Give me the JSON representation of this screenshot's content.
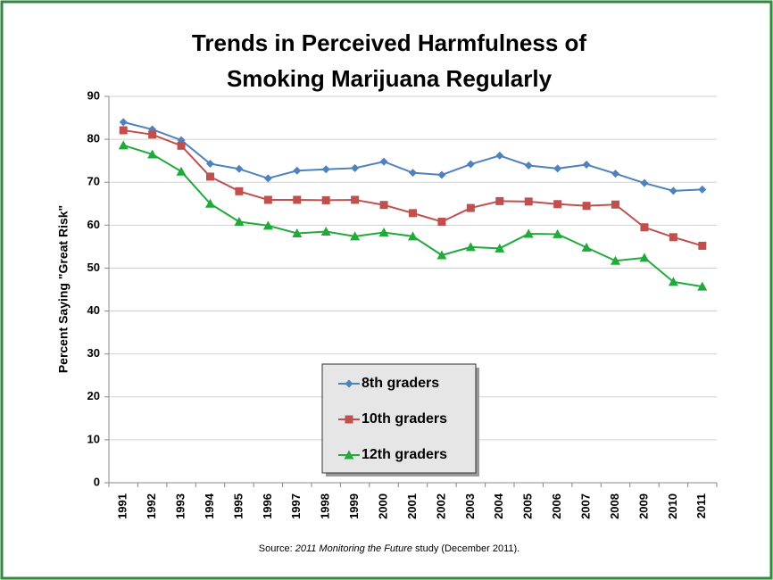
{
  "chart_data": {
    "type": "line",
    "title": [
      "Trends in Perceived Harmfulness of",
      "Smoking Marijuana Regularly"
    ],
    "y_label": "Percent Saying \"Great Risk\"",
    "categories": [
      "1991",
      "1992",
      "1993",
      "1994",
      "1995",
      "1996",
      "1997",
      "1998",
      "1999",
      "2000",
      "2001",
      "2002",
      "2003",
      "2004",
      "2005",
      "2006",
      "2007",
      "2008",
      "2009",
      "2010",
      "2011"
    ],
    "series": [
      {
        "name": "8th graders",
        "color": "#4f81bd",
        "marker": "diamond",
        "values": [
          84.0,
          82.3,
          79.8,
          74.3,
          73.1,
          70.9,
          72.7,
          73.0,
          73.3,
          74.8,
          72.2,
          71.7,
          74.2,
          76.2,
          73.9,
          73.2,
          74.1,
          72.0,
          69.8,
          68.0,
          68.3
        ]
      },
      {
        "name": "10th graders",
        "color": "#c0504d",
        "marker": "square",
        "values": [
          82.1,
          81.1,
          78.5,
          71.3,
          67.9,
          65.9,
          65.9,
          65.8,
          65.9,
          64.7,
          62.8,
          60.8,
          64.0,
          65.6,
          65.5,
          64.9,
          64.5,
          64.8,
          59.5,
          57.2,
          55.2
        ]
      },
      {
        "name": "12th graders",
        "color": "#1faa3a",
        "marker": "triangle",
        "values": [
          78.6,
          76.5,
          72.5,
          65.0,
          60.8,
          59.9,
          58.1,
          58.5,
          57.4,
          58.3,
          57.4,
          53.0,
          54.9,
          54.6,
          58.0,
          57.9,
          54.8,
          51.7,
          52.4,
          46.8,
          45.7
        ]
      }
    ],
    "ylim": [
      0,
      90
    ],
    "yticks": [
      0,
      10,
      20,
      30,
      40,
      50,
      60,
      70,
      80,
      90
    ],
    "grid": true,
    "source": {
      "prefix": "Source:  ",
      "italic": "2011 Monitoring the Future",
      "suffix": " study (December 2011)."
    }
  }
}
